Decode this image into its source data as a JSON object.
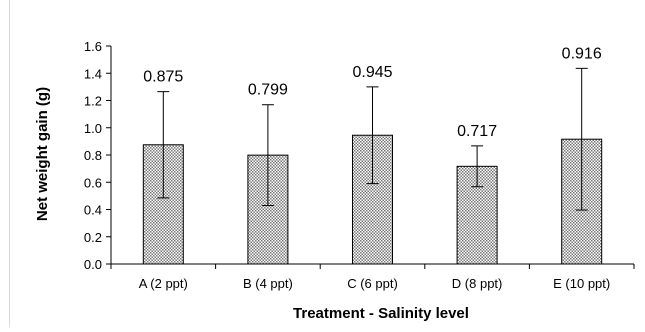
{
  "chart_data": {
    "type": "bar",
    "title": "",
    "xlabel": "Treatment - Salinity level",
    "ylabel": "Net weight gain (g)",
    "ylim": [
      0,
      1.6
    ],
    "yticks": [
      0,
      0.2,
      0.4,
      0.6,
      0.8,
      1.0,
      1.2,
      1.4,
      1.6
    ],
    "ytick_labels": [
      "0.0",
      "0.2",
      "0.4",
      "0.6",
      "0.8",
      "1.0",
      "1.2",
      "1.4",
      "1.6"
    ],
    "categories": [
      "A (2 ppt)",
      "B (4 ppt)",
      "C (6 ppt)",
      "D (8 ppt)",
      "E (10 ppt)"
    ],
    "values": [
      0.875,
      0.799,
      0.945,
      0.717,
      0.916
    ],
    "data_labels": [
      "0.875",
      "0.799",
      "0.945",
      "0.717",
      "0.916"
    ],
    "error_bars": [
      0.39,
      0.37,
      0.355,
      0.15,
      0.52
    ],
    "grid": false,
    "legend": "none",
    "bar_pattern": "crosshatch dots",
    "bar_color": "#8c8c8c",
    "bar_outline_color": "#000000"
  }
}
